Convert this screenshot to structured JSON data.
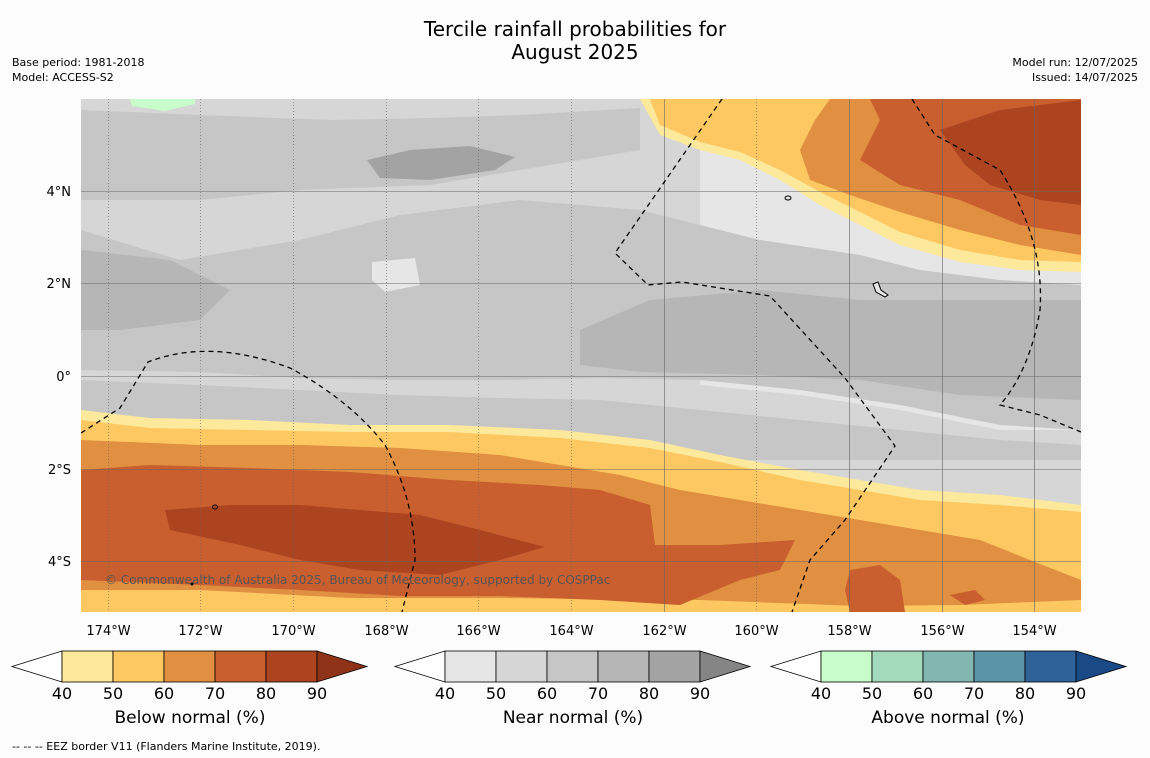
{
  "title_line1": "Tercile rainfall probabilities for",
  "title_line2": "August 2025",
  "base_period": "Base period: 1981-2018",
  "model": "Model: ACCESS-S2",
  "model_run": "Model run: 12/07/2025",
  "issued": "Issued: 14/07/2025",
  "copyright": "© Commonwealth of Australia 2025, Bureau of Meteorology, supported by COSPPac",
  "footer": "--  --  -- EEZ border V11 (Flanders Marine Institute, 2019).",
  "map": {
    "lon_ticks": [
      "174°W",
      "172°W",
      "170°W",
      "168°W",
      "166°W",
      "164°W",
      "162°W",
      "160°W",
      "158°W",
      "156°W",
      "154°W"
    ],
    "lat_ticks": [
      "4°N",
      "2°N",
      "0°",
      "2°S",
      "4°S"
    ]
  },
  "colorbars": [
    {
      "label": "Below normal (%)",
      "ticks": [
        "40",
        "50",
        "60",
        "70",
        "80",
        "90"
      ],
      "colors": [
        "#fde99b",
        "#fdc862",
        "#e09040",
        "#c95e2e",
        "#ad4420"
      ],
      "extend_color": "#8f3318"
    },
    {
      "label": "Near normal (%)",
      "ticks": [
        "40",
        "50",
        "60",
        "70",
        "80",
        "90"
      ],
      "colors": [
        "#e6e6e6",
        "#d6d6d6",
        "#c6c6c6",
        "#b6b6b6",
        "#a3a3a3"
      ],
      "extend_color": "#858585"
    },
    {
      "label": "Above normal (%)",
      "ticks": [
        "40",
        "50",
        "60",
        "70",
        "80",
        "90"
      ],
      "colors": [
        "#c8fccb",
        "#a4dabc",
        "#82b7b1",
        "#5b94a6",
        "#2e6298"
      ],
      "extend_color": "#1a4a86"
    }
  ]
}
